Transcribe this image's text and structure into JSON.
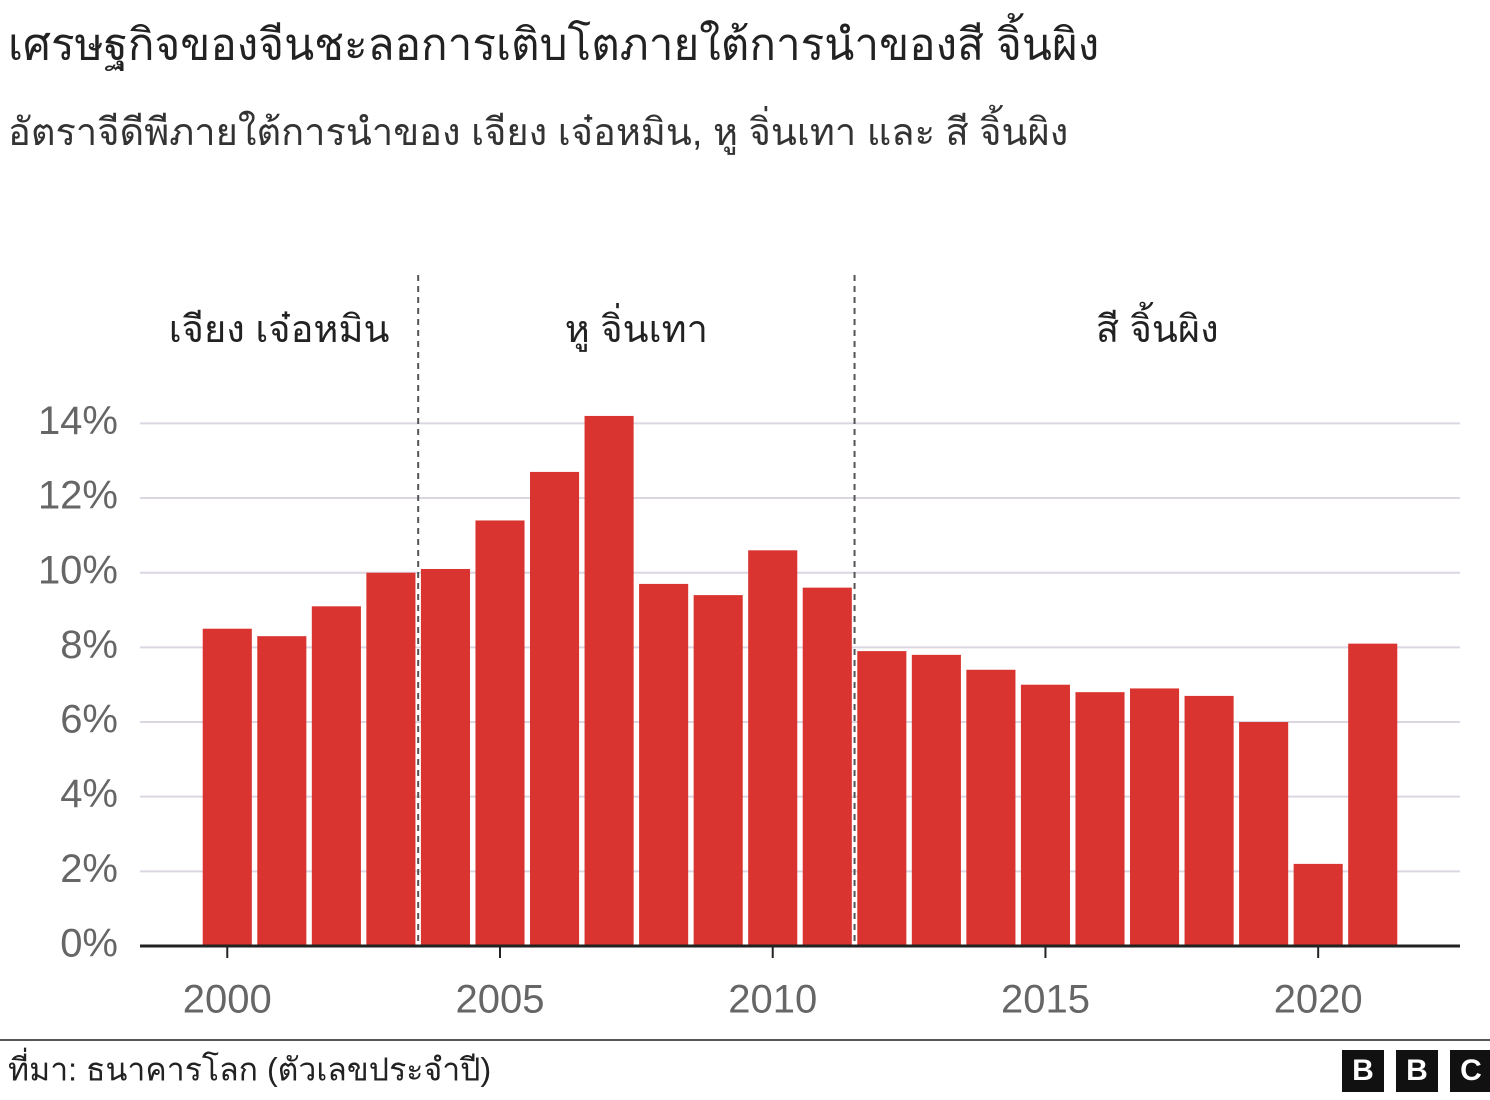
{
  "chart_data": {
    "type": "bar",
    "title": "เศรษฐกิจของจีนชะลอการเติบโตภายใต้การนำของสี จิ้นผิง",
    "subtitle": "อัตราจีดีพีภายใต้การนำของ เจียง เจ๋อหมิน, หู จิ่นเทา และ สี จิ้นผิง",
    "x": [
      2000,
      2001,
      2002,
      2003,
      2004,
      2005,
      2006,
      2007,
      2008,
      2009,
      2010,
      2011,
      2012,
      2013,
      2014,
      2015,
      2016,
      2017,
      2018,
      2019,
      2020,
      2021
    ],
    "values": [
      8.5,
      8.3,
      9.1,
      10.0,
      10.1,
      11.4,
      12.7,
      14.2,
      9.7,
      9.4,
      10.6,
      9.6,
      7.9,
      7.8,
      7.4,
      7.0,
      6.8,
      6.9,
      6.7,
      6.0,
      2.2,
      8.1
    ],
    "color": "#d9342f",
    "xlim": [
      1998.4,
      2022.6
    ],
    "xticks": [
      2000,
      2005,
      2010,
      2015,
      2020
    ],
    "ylim": [
      0,
      14.6
    ],
    "yticks": [
      {
        "value": 0,
        "label": "0%"
      },
      {
        "value": 2,
        "label": "2%"
      },
      {
        "value": 4,
        "label": "4%"
      },
      {
        "value": 6,
        "label": "6%"
      },
      {
        "value": 8,
        "label": "8%"
      },
      {
        "value": 10,
        "label": "10%"
      },
      {
        "value": 12,
        "label": "12%"
      },
      {
        "value": 14,
        "label": "14%"
      }
    ],
    "grid": true,
    "dividers": [
      2003.5,
      2011.5
    ],
    "eras": [
      "เจียง เจ๋อหมิน",
      "หู จิ่นเทา",
      "สี จิ้นผิง"
    ],
    "source": "ที่มา: ธนาคารโลก (ตัวเลขประจำปี)",
    "logo": [
      "B",
      "B",
      "C"
    ]
  }
}
